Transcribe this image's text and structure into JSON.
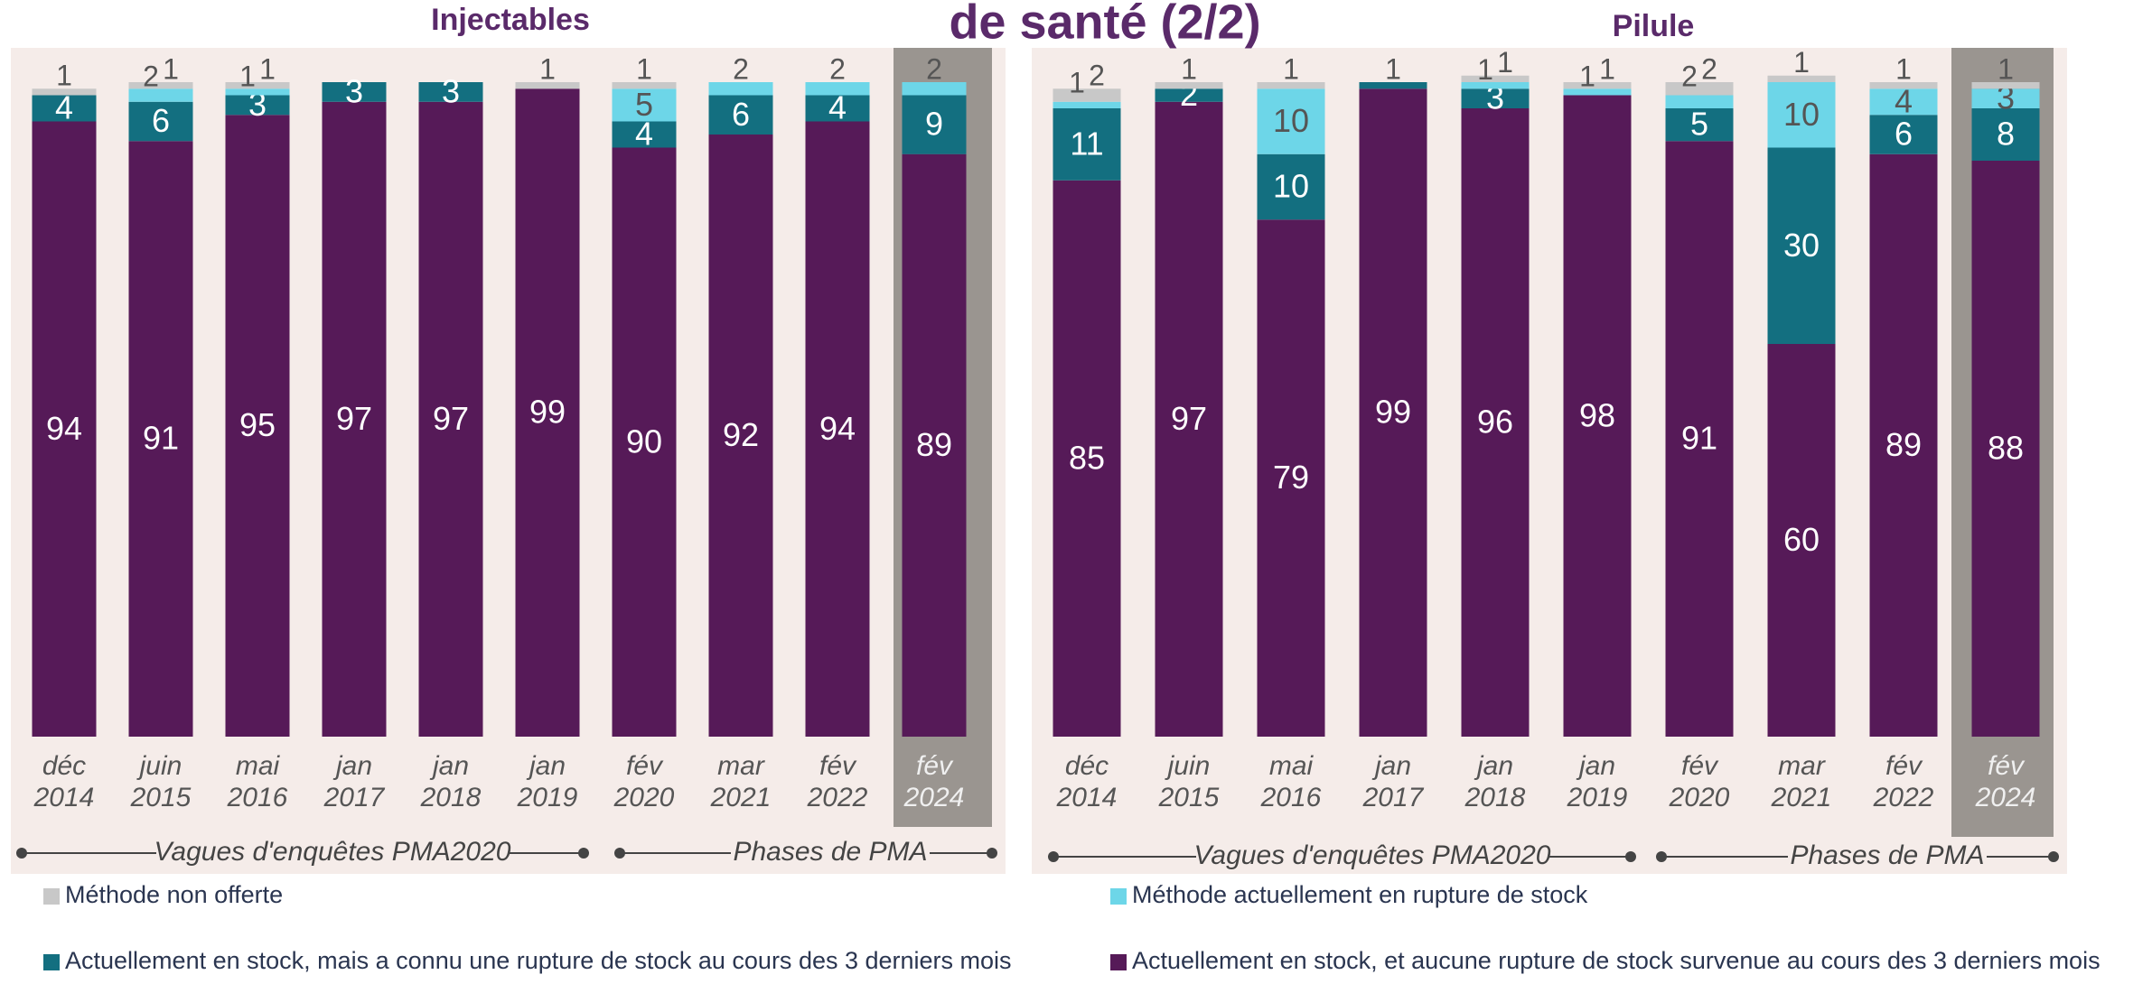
{
  "page_title": "de santé (2/2)",
  "chart_data": [
    {
      "type": "stacked_bar",
      "title": "Injectables",
      "categories": [
        [
          "déc",
          "2014"
        ],
        [
          "juin",
          "2015"
        ],
        [
          "mai",
          "2016"
        ],
        [
          "jan",
          "2017"
        ],
        [
          "jan",
          "2018"
        ],
        [
          "jan",
          "2019"
        ],
        [
          "fév",
          "2020"
        ],
        [
          "mar",
          "2021"
        ],
        [
          "fév",
          "2022"
        ],
        [
          "fév",
          "2024"
        ]
      ],
      "ylim": [
        0,
        100
      ],
      "highlight_category": 9,
      "groups": [
        "Vagues d'enquêtes PMA2020",
        "Phases de PMA"
      ],
      "series": [
        {
          "name": "Actuellement en stock, et aucune rupture de stock survenue au cours des 3 derniers mois",
          "color": "#561a58",
          "values": [
            94,
            91,
            95,
            97,
            97,
            99,
            90,
            92,
            94,
            89
          ]
        },
        {
          "name": "Actuellement en stock, mais a connu une rupture de stock au cours des 3 derniers mois",
          "color": "#136f80",
          "values": [
            4,
            6,
            3,
            3,
            3,
            null,
            4,
            6,
            4,
            9
          ]
        },
        {
          "name": "Méthode actuellement en rupture de stock",
          "color": "#6dd6e8",
          "values": [
            null,
            2,
            1,
            null,
            null,
            null,
            5,
            2,
            2,
            2
          ]
        },
        {
          "name": "Méthode non offerte",
          "color": "#c8c8c8",
          "values": [
            1,
            1,
            1,
            null,
            null,
            1,
            1,
            null,
            null,
            null
          ]
        }
      ]
    },
    {
      "type": "stacked_bar",
      "title": "Pilule",
      "categories": [
        [
          "déc",
          "2014"
        ],
        [
          "juin",
          "2015"
        ],
        [
          "mai",
          "2016"
        ],
        [
          "jan",
          "2017"
        ],
        [
          "jan",
          "2018"
        ],
        [
          "jan",
          "2019"
        ],
        [
          "fév",
          "2020"
        ],
        [
          "mar",
          "2021"
        ],
        [
          "fév",
          "2022"
        ],
        [
          "fév",
          "2024"
        ]
      ],
      "ylim": [
        0,
        100
      ],
      "highlight_category": 9,
      "groups": [
        "Vagues d'enquêtes PMA2020",
        "Phases de PMA"
      ],
      "series": [
        {
          "color": "#561a58",
          "values": [
            85,
            97,
            79,
            99,
            96,
            98,
            91,
            60,
            89,
            88
          ]
        },
        {
          "color": "#136f80",
          "values": [
            11,
            2,
            10,
            1,
            3,
            null,
            5,
            30,
            6,
            8
          ]
        },
        {
          "color": "#6dd6e8",
          "values": [
            1,
            null,
            10,
            null,
            1,
            1,
            2,
            10,
            4,
            3
          ]
        },
        {
          "color": "#c8c8c8",
          "values": [
            2,
            1,
            1,
            null,
            1,
            1,
            2,
            1,
            1,
            1
          ]
        }
      ]
    }
  ]
}
